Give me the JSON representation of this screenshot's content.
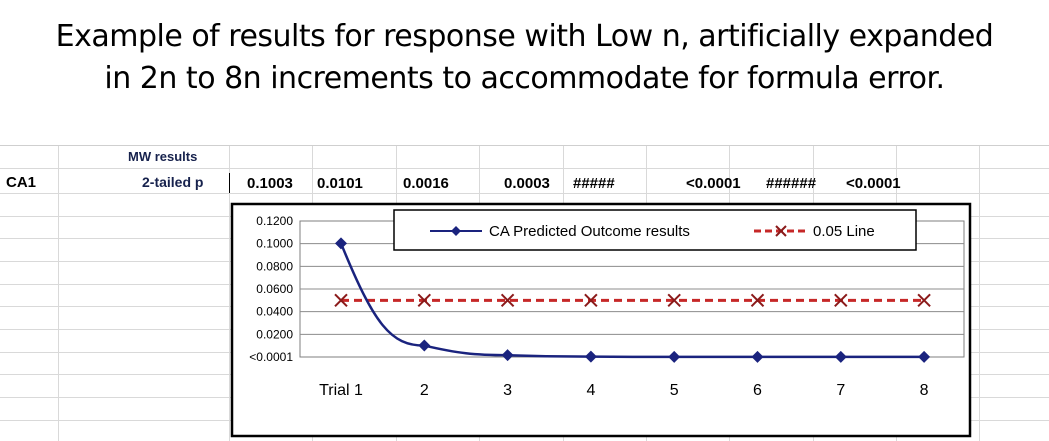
{
  "slide": {
    "title_line1": "Example of results for response with Low n, artificially expanded",
    "title_line2": "in 2n to 8n increments to accommodate for formula error."
  },
  "sheet": {
    "header_label": "MW results",
    "row_label": "CA1",
    "p_label": "2-tailed p",
    "p_values": [
      "0.1003",
      "0.0101",
      "0.0016",
      "0.0003",
      "#####",
      "<0.0001",
      "######",
      "<0.0001"
    ]
  },
  "chart_data": {
    "type": "line",
    "categories": [
      "Trial 1",
      "2",
      "3",
      "4",
      "5",
      "6",
      "7",
      "8"
    ],
    "series": [
      {
        "name": "CA Predicted Outcome results",
        "values": [
          0.1003,
          0.0101,
          0.0016,
          0.0003,
          0.0001,
          0.0001,
          0.0001,
          0.0001
        ],
        "color": "#1a237e",
        "marker": "diamond",
        "line": "solid"
      },
      {
        "name": "0.05 Line",
        "values": [
          0.05,
          0.05,
          0.05,
          0.05,
          0.05,
          0.05,
          0.05,
          0.05
        ],
        "color": "#c62828",
        "marker": "x",
        "line": "dashed"
      }
    ],
    "ylim": [
      0,
      0.12
    ],
    "yticks": [
      {
        "value": 0.12,
        "label": "0.1200"
      },
      {
        "value": 0.1,
        "label": "0.1000"
      },
      {
        "value": 0.08,
        "label": "0.0800"
      },
      {
        "value": 0.06,
        "label": "0.0600"
      },
      {
        "value": 0.04,
        "label": "0.0400"
      },
      {
        "value": 0.02,
        "label": "0.0200"
      },
      {
        "value": 0.0,
        "label": "<0.0001"
      }
    ],
    "grid": true,
    "legend": "top"
  }
}
